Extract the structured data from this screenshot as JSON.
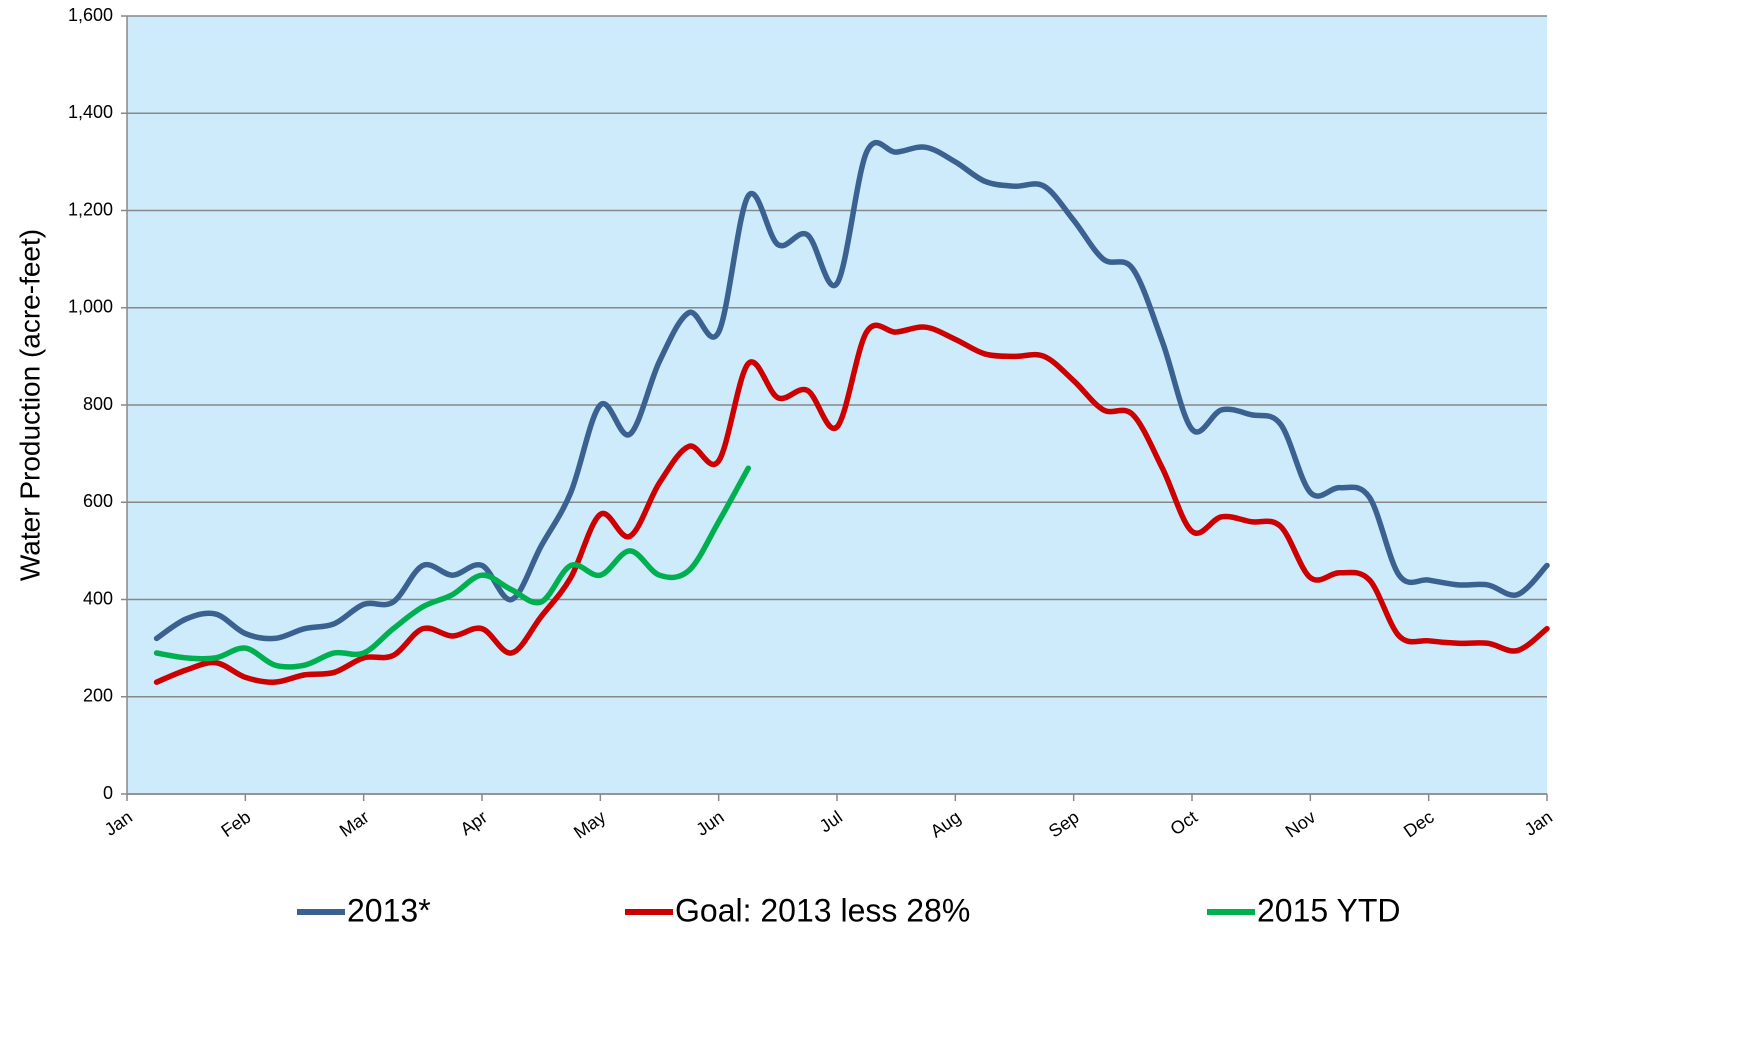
{
  "chart_data": {
    "type": "line",
    "y_label": "Water Production (acre-feet)",
    "categories": [
      "Jan",
      null,
      null,
      null,
      "Feb",
      null,
      null,
      null,
      "Mar",
      null,
      null,
      null,
      "Apr",
      null,
      null,
      null,
      "May",
      null,
      null,
      null,
      "Jun",
      null,
      null,
      null,
      "Jul",
      null,
      null,
      null,
      "Aug",
      null,
      null,
      null,
      "Sep",
      null,
      null,
      null,
      "Oct",
      null,
      null,
      null,
      "Nov",
      null,
      null,
      null,
      "Dec",
      null,
      null,
      null,
      "Jan"
    ],
    "series": [
      {
        "name": "2013*",
        "color": "#3b6190",
        "values": [
          null,
          320,
          360,
          370,
          330,
          320,
          340,
          350,
          390,
          395,
          470,
          450,
          470,
          400,
          510,
          620,
          800,
          740,
          890,
          990,
          950,
          1230,
          1130,
          1150,
          1050,
          1320,
          1320,
          1330,
          1300,
          1260,
          1250,
          1250,
          1180,
          1100,
          1080,
          930,
          750,
          790,
          780,
          760,
          620,
          630,
          610,
          450,
          440,
          430,
          430,
          410,
          470
        ]
      },
      {
        "name": "Goal: 2013 less 28%",
        "color": "#cc0000",
        "values": [
          null,
          230,
          255,
          270,
          240,
          230,
          245,
          250,
          280,
          285,
          340,
          325,
          340,
          290,
          365,
          445,
          575,
          530,
          640,
          715,
          685,
          885,
          815,
          830,
          755,
          950,
          950,
          960,
          935,
          905,
          900,
          900,
          850,
          790,
          780,
          670,
          540,
          570,
          560,
          550,
          445,
          455,
          440,
          325,
          315,
          310,
          310,
          295,
          340
        ]
      },
      {
        "name": "2015 YTD",
        "color": "#00b050",
        "values": [
          null,
          290,
          280,
          280,
          300,
          265,
          265,
          290,
          290,
          340,
          385,
          410,
          450,
          420,
          395,
          470,
          450,
          500,
          450,
          460,
          560,
          670,
          null,
          null,
          null,
          null,
          null,
          null,
          null,
          null,
          null,
          null,
          null,
          null,
          null,
          null,
          null,
          null,
          null,
          null,
          null,
          null,
          null,
          null,
          null,
          null,
          null,
          null,
          null
        ]
      }
    ],
    "ylim": [
      0,
      1600
    ],
    "yticks": [
      0,
      200,
      400,
      600,
      800,
      {
        "value": 1000,
        "label": "1,000"
      },
      {
        "value": 1200,
        "label": "1,200"
      },
      {
        "value": 1400,
        "label": "1,400"
      },
      {
        "value": 1600,
        "label": "1,600"
      }
    ],
    "grid": true,
    "background": "#cdebfb",
    "legend": "bottom"
  }
}
